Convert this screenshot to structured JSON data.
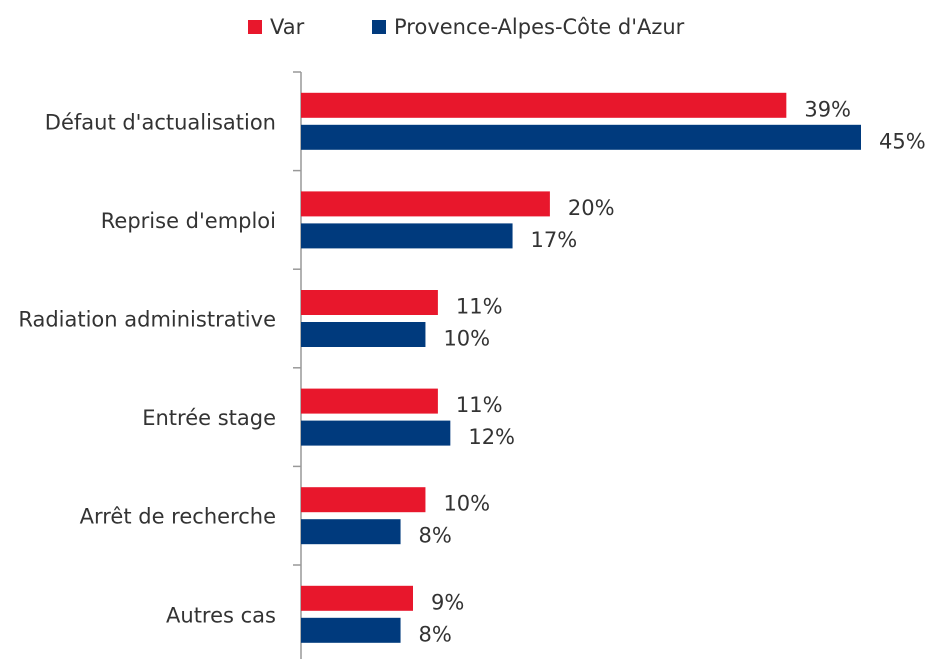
{
  "chart_data": {
    "type": "bar",
    "orientation": "horizontal",
    "categories": [
      "Défaut d'actualisation",
      "Reprise d'emploi",
      "Radiation administrative",
      "Entrée stage",
      "Arrêt de recherche",
      "Autres cas"
    ],
    "series": [
      {
        "name": "Var",
        "color": "#e8172c",
        "values": [
          39,
          20,
          11,
          11,
          10,
          9
        ],
        "value_labels": [
          "39%",
          "20%",
          "11%",
          "11%",
          "10%",
          "9%"
        ]
      },
      {
        "name": "Provence-Alpes-Côte d'Azur",
        "color": "#003a7d",
        "values": [
          45,
          17,
          10,
          12,
          8,
          8
        ],
        "value_labels": [
          "45%",
          "17%",
          "10%",
          "12%",
          "8%",
          "8%"
        ]
      }
    ],
    "legend": "top"
  }
}
